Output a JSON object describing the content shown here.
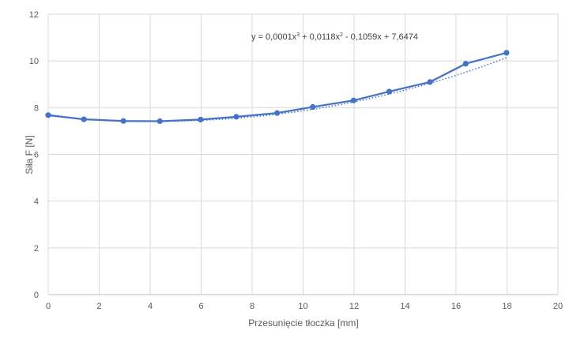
{
  "chart_data": {
    "type": "scatter",
    "title": "",
    "xlabel": "Przesunięcie tłoczka [mm]",
    "ylabel": "Siła F [N]",
    "xlim": [
      0,
      20
    ],
    "ylim": [
      0,
      12
    ],
    "x_ticks": [
      "0",
      "2",
      "4",
      "6",
      "8",
      "10",
      "12",
      "14",
      "16",
      "18",
      "20"
    ],
    "y_ticks": [
      "0",
      "2",
      "4",
      "6",
      "8",
      "10",
      "12"
    ],
    "grid": true,
    "legend": "none",
    "series": [
      {
        "style": "line-with-markers",
        "color": "#4472C4",
        "x": [
          0,
          1.4,
          2.95,
          4.38,
          5.98,
          7.38,
          8.98,
          10.38,
          11.98,
          13.38,
          14.98,
          16.38,
          17.98
        ],
        "y": [
          7.68,
          7.5,
          7.43,
          7.42,
          7.49,
          7.61,
          7.77,
          8.03,
          8.31,
          8.69,
          9.1,
          9.88,
          10.35
        ]
      }
    ],
    "trendline": {
      "type": "polynomial",
      "order": 3,
      "style": "dotted",
      "color": "#4472C4",
      "coefficients": [
        0.0001,
        0.0118,
        -0.1059,
        7.6474
      ],
      "equation_prefix": "y = 0,0001x",
      "equation_sup1": "3",
      "equation_mid": " + 0,0118x",
      "equation_sup2": "2",
      "equation_suffix": " - 0,1059x + 7,6474"
    },
    "colors": {
      "grid": "#D9D9D9",
      "axis": "#BFBFBF",
      "text": "#595959"
    }
  }
}
